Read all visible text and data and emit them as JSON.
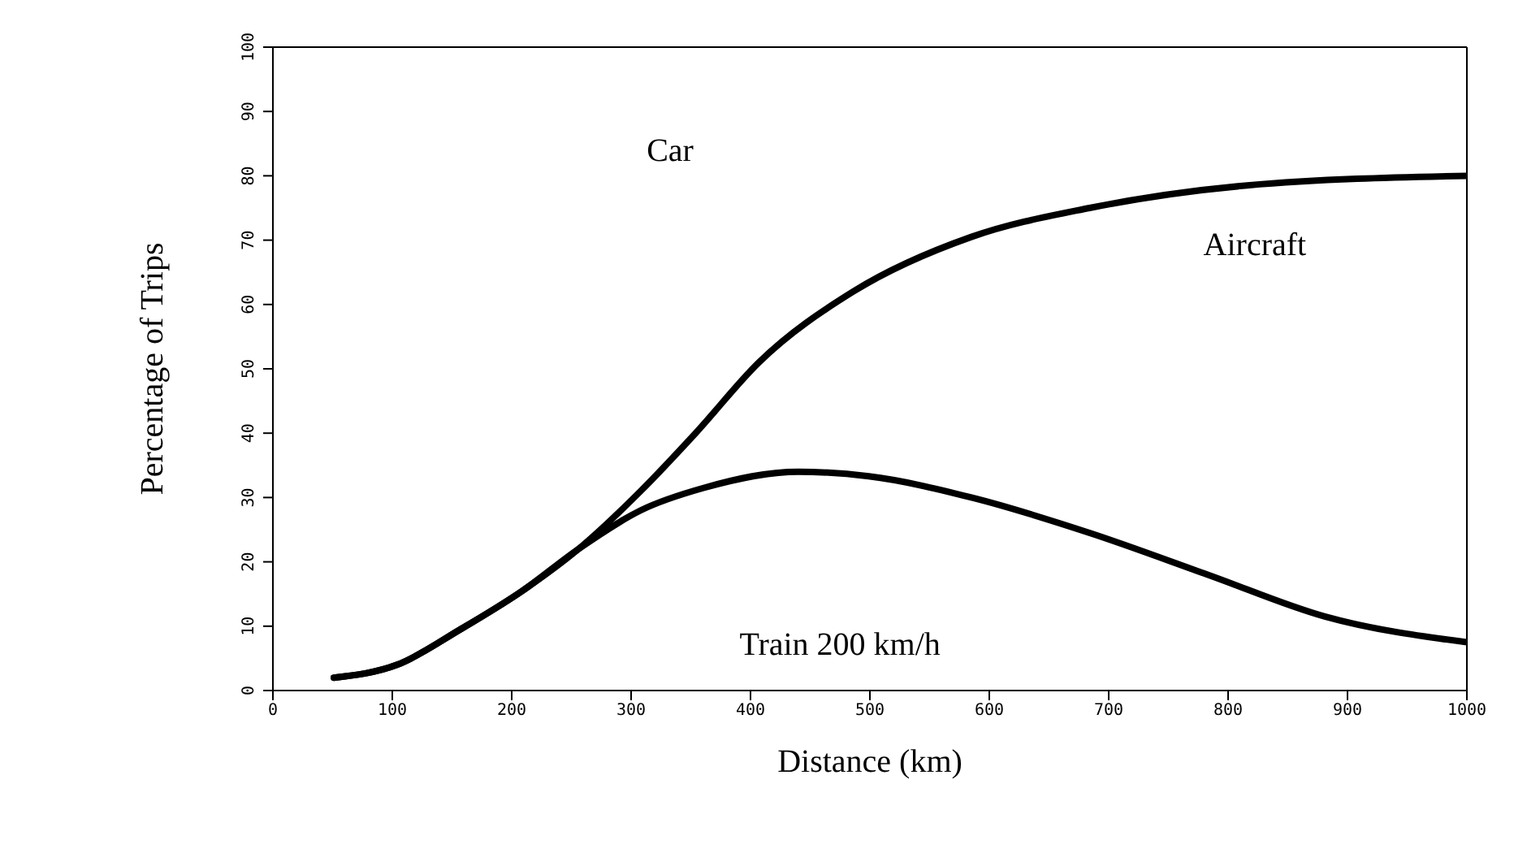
{
  "chart_data": {
    "type": "line",
    "xlabel": "Distance (km)",
    "ylabel": "Percentage of Trips",
    "series": [
      {
        "color": "#000000",
        "x": [
          51,
          104,
          157,
          209,
          256,
          308,
          354,
          407,
          486,
          585,
          684,
          816,
          1000
        ],
        "values": [
          2,
          4,
          9.5,
          15.5,
          22,
          31,
          40,
          51,
          62,
          70.5,
          75,
          78.5,
          80
        ]
      },
      {
        "color": "#000000",
        "x": [
          51,
          104,
          157,
          209,
          256,
          308,
          361,
          440,
          499,
          585,
          684,
          783,
          881,
          1000
        ],
        "values": [
          2,
          4,
          9.5,
          15.5,
          22,
          28,
          31.5,
          34,
          33.3,
          30,
          24.5,
          18,
          11.5,
          7.5
        ]
      }
    ],
    "annotations": [
      "Car",
      "Aircraft",
      "Train 200 km/h"
    ],
    "xlim": [
      0,
      1000
    ],
    "xticks": [
      0,
      100,
      200,
      300,
      400,
      500,
      600,
      700,
      800,
      900,
      1000
    ],
    "ylim": [
      0,
      100
    ],
    "yticks": [
      0,
      10,
      20,
      30,
      40,
      50,
      60,
      70,
      80,
      90,
      100
    ],
    "grid": false,
    "legend": false,
    "marker": "none",
    "line_style": "solid"
  }
}
